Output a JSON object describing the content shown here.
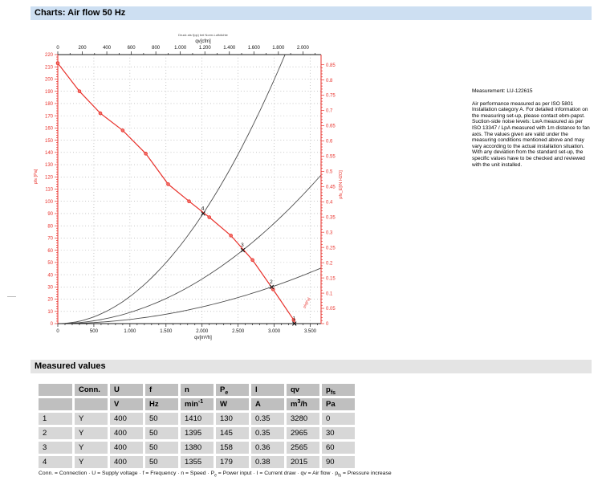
{
  "header": {
    "title": "Charts: Air flow 50 Hz"
  },
  "side_note": {
    "title": "Measurement: LU-122615",
    "body": "Air performance measured as per ISO 5801 Installation category A. For detailed information on the measuring set-up, please contact ebm-papst. Suction-side noise levels: LwA measured as per ISO 13347 / LpA measured with 1m distance to fan axis. The values given are valid under the measuring conditions mentioned above and may vary according to the actual installation situation. With any deviation from the standard set-up, the specific values have to be checked and reviewed with the unit installed."
  },
  "chart_data": {
    "type": "line",
    "note_above": "Druck als f(qv) bei Norm-Luftdichte",
    "top_axis": {
      "label": "qv[cfm]",
      "unit_to_m3h": 1.699,
      "max": 2100,
      "major_step": 200,
      "minor_step": 100,
      "tick_labels": [
        "0",
        "200",
        "400",
        "600",
        "800",
        "1.000",
        "1.200",
        "1.400",
        "1.600",
        "1.800",
        "2.000"
      ]
    },
    "bottom_axis": {
      "label": "qv[m³/h]",
      "max": 3650,
      "major_step": 500,
      "minor_step": 100,
      "tick_labels": [
        "0",
        "500",
        "1.000",
        "1.500",
        "2.000",
        "2.500",
        "3.000",
        "3.500"
      ]
    },
    "left_axis": {
      "label": "pfs [Pa]",
      "max": 220,
      "major_step": 10,
      "minor_step": 2,
      "color": "#e8322c",
      "tick_labels": [
        "0",
        "10",
        "20",
        "30",
        "40",
        "50",
        "60",
        "70",
        "80",
        "90",
        "100",
        "110",
        "120",
        "130",
        "140",
        "150",
        "160",
        "170",
        "180",
        "190",
        "200",
        "210",
        "220"
      ]
    },
    "right_axis": {
      "label": "pfs_E[IN H2O]",
      "max": 0.85,
      "pa_per_unit": 249.1,
      "major_step": 0.05,
      "minor_step": 0.01,
      "tick_labels": [
        "0",
        "0.05",
        "0.1",
        "0.15",
        "0.2",
        "0.25",
        "0.3",
        "0.35",
        "0.4",
        "0.45",
        "0.5",
        "0.55",
        "0.6",
        "0.65",
        "0.7",
        "0.75",
        "0.8",
        "0.85"
      ]
    },
    "fan_curve": {
      "color": "#e8322c",
      "marker_fill": "#f4736b",
      "end_label": "pfs[Pa]",
      "points": [
        [
          0,
          213
        ],
        [
          300,
          190
        ],
        [
          590,
          172
        ],
        [
          900,
          158
        ],
        [
          1220,
          139
        ],
        [
          1530,
          114
        ],
        [
          1820,
          100
        ],
        [
          2100,
          87
        ],
        [
          2400,
          72
        ],
        [
          2700,
          52
        ],
        [
          2985,
          28
        ],
        [
          3270,
          3
        ],
        [
          3290,
          0
        ]
      ]
    },
    "operating_points": [
      {
        "label": "1",
        "qv": 3280,
        "pfs": 0
      },
      {
        "label": "2",
        "qv": 2965,
        "pfs": 30
      },
      {
        "label": "3",
        "qv": 2565,
        "pfs": 60
      },
      {
        "label": "4",
        "qv": 2015,
        "pfs": 90
      }
    ],
    "system_curves": {
      "color": "#4d4d4d"
    },
    "grid": {
      "h_step": 10,
      "v_step": 500,
      "color": "#9a9a9a"
    }
  },
  "table": {
    "title": "Measured values",
    "headers": [
      "",
      "Conn.",
      "U",
      "f",
      "n",
      "P~e~",
      "I",
      "qv",
      "p~fs~"
    ],
    "units": [
      "",
      "",
      "V",
      "Hz",
      "min^-1^",
      "W",
      "A",
      "m^3^/h",
      "Pa"
    ],
    "rows": [
      [
        "1",
        "Y",
        "400",
        "50",
        "1410",
        "130",
        "0.35",
        "3280",
        "0"
      ],
      [
        "2",
        "Y",
        "400",
        "50",
        "1395",
        "145",
        "0.35",
        "2965",
        "30"
      ],
      [
        "3",
        "Y",
        "400",
        "50",
        "1380",
        "158",
        "0.36",
        "2565",
        "60"
      ],
      [
        "4",
        "Y",
        "400",
        "50",
        "1355",
        "179",
        "0.38",
        "2015",
        "90"
      ]
    ],
    "legend": "Conn. = Connection · U = Supply voltage · f = Frequency · n = Speed · P~e~ = Power input · I = Current draw · qv = Air flow · p~fs~ = Pressure increase"
  }
}
